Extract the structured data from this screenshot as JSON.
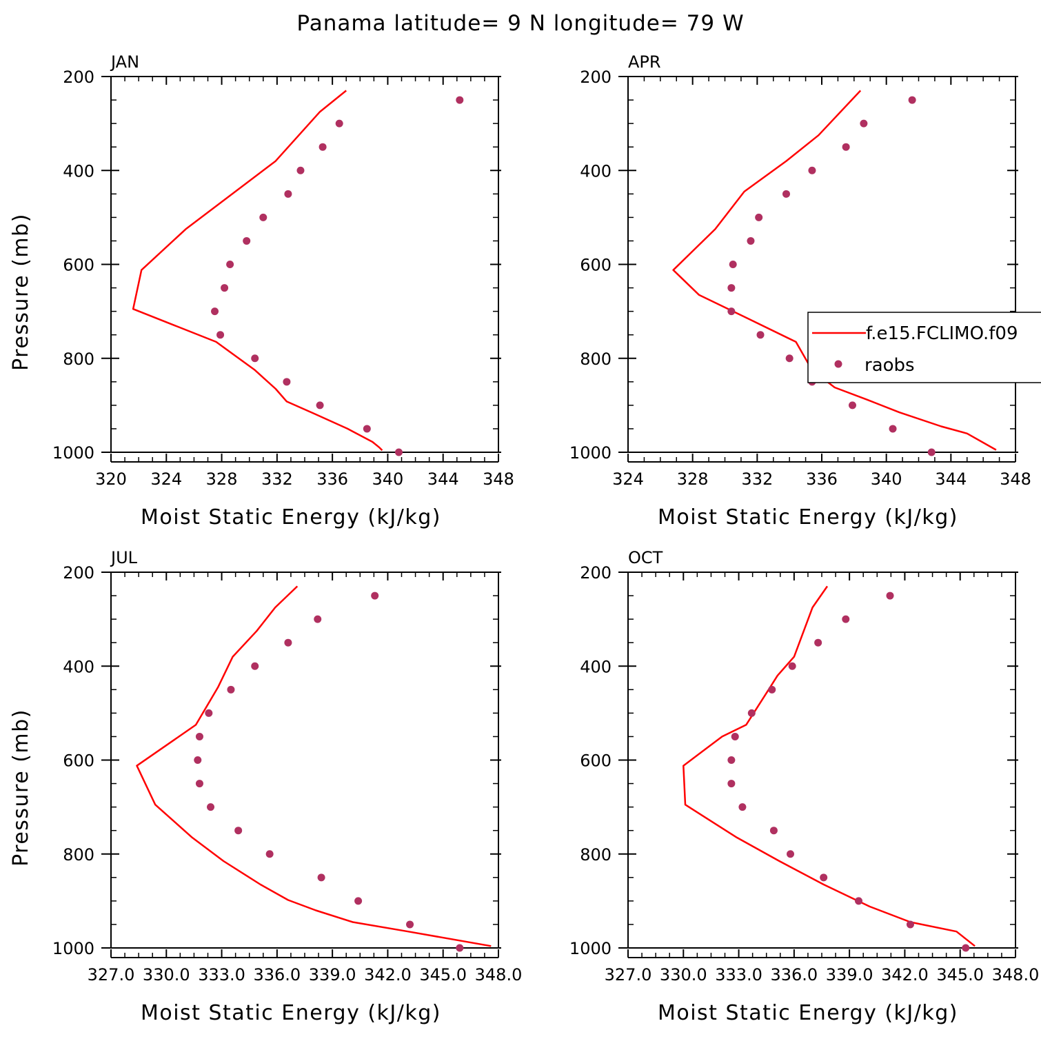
{
  "figure": {
    "title": "Panama  latitude= 9 N longitude= 79 W"
  },
  "colors": {
    "model": "#ff0000",
    "raobs": "#b03060",
    "axis": "#000000"
  },
  "legend": {
    "entries": [
      {
        "label": "f.e15.FCLIMO.f09",
        "marker": "line"
      },
      {
        "label": "raobs",
        "marker": "dot"
      }
    ]
  },
  "chart_data": [
    {
      "type": "line",
      "panel_title": "JAN",
      "xlabel": "Moist Static Energy (kJ/kg)",
      "ylabel": "Pressure (mb)",
      "xlim": [
        320,
        348
      ],
      "ylim": [
        200,
        1000
      ],
      "x_ticks": [
        320,
        324,
        328,
        332,
        336,
        340,
        344,
        348
      ],
      "x_tick_labels": [
        "320",
        "324",
        "328",
        "332",
        "336",
        "340",
        "344",
        "348"
      ],
      "y_ticks": [
        200,
        400,
        600,
        800,
        1000
      ],
      "y_tick_labels": [
        "200",
        "400",
        "600",
        "800",
        "1000"
      ],
      "series": [
        {
          "name": "f.e15.FCLIMO.f09",
          "style": "line",
          "x": [
            337.0,
            335.1,
            331.9,
            325.4,
            322.2,
            321.6,
            327.6,
            330.4,
            331.9,
            332.7,
            334.7,
            337.1,
            338.9,
            339.4,
            339.6
          ],
          "y": [
            230,
            275,
            380,
            525,
            612,
            695,
            765,
            825,
            865,
            892,
            918,
            950,
            978,
            990,
            996
          ]
        },
        {
          "name": "raobs",
          "style": "dots",
          "x": [
            345.2,
            336.5,
            335.3,
            333.7,
            332.8,
            331.0,
            329.8,
            328.6,
            328.2,
            327.5,
            327.9,
            330.4,
            332.7,
            335.1,
            338.5,
            340.8
          ],
          "y": [
            250,
            300,
            350,
            400,
            450,
            500,
            550,
            600,
            650,
            700,
            750,
            800,
            850,
            900,
            950,
            1000
          ]
        }
      ]
    },
    {
      "type": "line",
      "panel_title": "APR",
      "xlabel": "Moist Static Energy (kJ/kg)",
      "ylabel": "",
      "xlim": [
        324,
        348
      ],
      "ylim": [
        200,
        1000
      ],
      "x_ticks": [
        324,
        328,
        332,
        336,
        340,
        344,
        348
      ],
      "x_tick_labels": [
        "324",
        "328",
        "332",
        "336",
        "340",
        "344",
        "348"
      ],
      "y_ticks": [
        200,
        400,
        600,
        800,
        1000
      ],
      "y_tick_labels": [
        "200",
        "400",
        "600",
        "800",
        "1000"
      ],
      "legend_position": "right",
      "series": [
        {
          "name": "f.e15.FCLIMO.f09",
          "style": "line",
          "x": [
            338.4,
            335.8,
            333.8,
            331.2,
            329.4,
            326.8,
            328.4,
            331.4,
            334.4,
            335.4,
            336.8,
            338.8,
            340.8,
            343.4,
            345.0,
            346.8
          ],
          "y": [
            230,
            325,
            380,
            445,
            525,
            612,
            665,
            715,
            765,
            825,
            862,
            888,
            915,
            945,
            960,
            995
          ]
        },
        {
          "name": "raobs",
          "style": "dots",
          "x": [
            341.6,
            338.6,
            337.5,
            335.4,
            333.8,
            332.1,
            331.6,
            330.5,
            330.4,
            330.4,
            332.2,
            334.0,
            335.4,
            337.9,
            340.4,
            342.8
          ],
          "y": [
            250,
            300,
            350,
            400,
            450,
            500,
            550,
            600,
            650,
            700,
            750,
            800,
            850,
            900,
            950,
            1000
          ]
        }
      ]
    },
    {
      "type": "line",
      "panel_title": "JUL",
      "xlabel": "Moist Static Energy (kJ/kg)",
      "ylabel": "Pressure (mb)",
      "xlim": [
        327.0,
        348.0
      ],
      "ylim": [
        200,
        1000
      ],
      "x_ticks": [
        327.0,
        330.0,
        333.0,
        336.0,
        339.0,
        342.0,
        345.0,
        348.0
      ],
      "x_tick_labels": [
        "327.0",
        "330.0",
        "333.0",
        "336.0",
        "339.0",
        "342.0",
        "345.0",
        "348.0"
      ],
      "y_ticks": [
        200,
        400,
        600,
        800,
        1000
      ],
      "y_tick_labels": [
        "200",
        "400",
        "600",
        "800",
        "1000"
      ],
      "series": [
        {
          "name": "f.e15.FCLIMO.f09",
          "style": "line",
          "x": [
            337.1,
            335.9,
            334.9,
            333.6,
            332.8,
            331.6,
            328.4,
            329.4,
            331.4,
            333.1,
            335.1,
            336.6,
            338.1,
            340.1,
            343.1,
            347.6
          ],
          "y": [
            230,
            275,
            325,
            380,
            445,
            525,
            612,
            695,
            765,
            815,
            865,
            898,
            920,
            945,
            965,
            996
          ]
        },
        {
          "name": "raobs",
          "style": "dots",
          "x": [
            341.3,
            338.2,
            336.6,
            334.8,
            333.5,
            332.3,
            331.8,
            331.7,
            331.8,
            332.4,
            333.9,
            335.6,
            338.4,
            340.4,
            343.2,
            345.9
          ],
          "y": [
            250,
            300,
            350,
            400,
            450,
            500,
            550,
            600,
            650,
            700,
            750,
            800,
            850,
            900,
            950,
            1000
          ]
        }
      ]
    },
    {
      "type": "line",
      "panel_title": "OCT",
      "xlabel": "Moist Static Energy (kJ/kg)",
      "ylabel": "",
      "xlim": [
        327.0,
        348.0
      ],
      "ylim": [
        200,
        1000
      ],
      "x_ticks": [
        327.0,
        330.0,
        333.0,
        336.0,
        339.0,
        342.0,
        345.0,
        348.0
      ],
      "x_tick_labels": [
        "327.0",
        "330.0",
        "333.0",
        "336.0",
        "339.0",
        "342.0",
        "345.0",
        "348.0"
      ],
      "y_ticks": [
        200,
        400,
        600,
        800,
        1000
      ],
      "y_tick_labels": [
        "200",
        "400",
        "600",
        "800",
        "1000"
      ],
      "series": [
        {
          "name": "f.e15.FCLIMO.f09",
          "style": "line",
          "x": [
            337.8,
            337.0,
            336.0,
            335.1,
            334.7,
            333.4,
            332.1,
            330.0,
            330.1,
            332.9,
            335.2,
            337.6,
            340.1,
            342.3,
            344.8,
            345.8
          ],
          "y": [
            230,
            275,
            380,
            420,
            445,
            525,
            550,
            612,
            695,
            765,
            815,
            865,
            912,
            945,
            965,
            996
          ]
        },
        {
          "name": "raobs",
          "style": "dots",
          "x": [
            341.2,
            338.8,
            337.3,
            335.9,
            334.8,
            333.7,
            332.8,
            332.6,
            332.6,
            333.2,
            334.9,
            335.8,
            337.6,
            339.5,
            342.3,
            345.3
          ],
          "y": [
            250,
            300,
            350,
            400,
            450,
            500,
            550,
            600,
            650,
            700,
            750,
            800,
            850,
            900,
            950,
            1000
          ]
        }
      ]
    }
  ]
}
